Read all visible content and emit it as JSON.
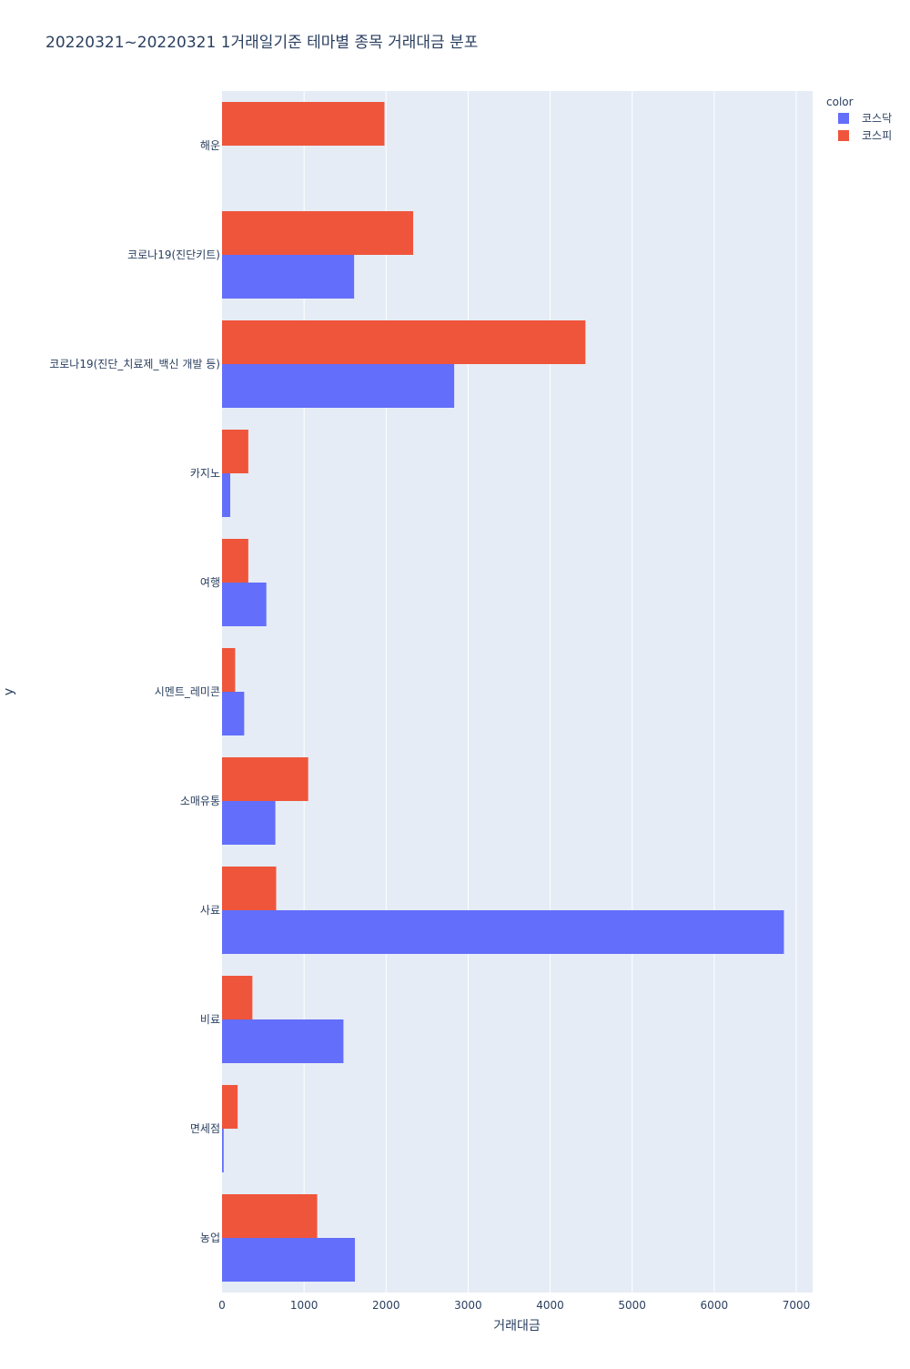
{
  "chart_data": {
    "type": "bar",
    "orientation": "horizontal",
    "barmode": "group",
    "title": "20220321~20220321 1거래일기준 테마별 종목 거래대금 분포",
    "xlabel": "거래대금",
    "ylabel": "y",
    "xlim": [
      0,
      7200
    ],
    "xticks": [
      0,
      1000,
      2000,
      3000,
      4000,
      5000,
      6000,
      7000
    ],
    "grid": true,
    "legend": {
      "title": "color",
      "position": "top-right"
    },
    "categories": [
      "해운",
      "코로나19(진단키트)",
      "코로나19(진단_치료제_백신 개발 등)",
      "카지노",
      "여행",
      "시멘트_레미콘",
      "소매유통",
      "사료",
      "비료",
      "면세점",
      "농업"
    ],
    "series": [
      {
        "name": "코스닥",
        "color": "#636efa",
        "values": [
          0,
          1610,
          2830,
          100,
          540,
          270,
          650,
          6850,
          1480,
          20,
          1620
        ]
      },
      {
        "name": "코스피",
        "color": "#ef553b",
        "values": [
          1980,
          2330,
          4430,
          320,
          320,
          160,
          1050,
          660,
          370,
          190,
          1160
        ]
      }
    ]
  }
}
